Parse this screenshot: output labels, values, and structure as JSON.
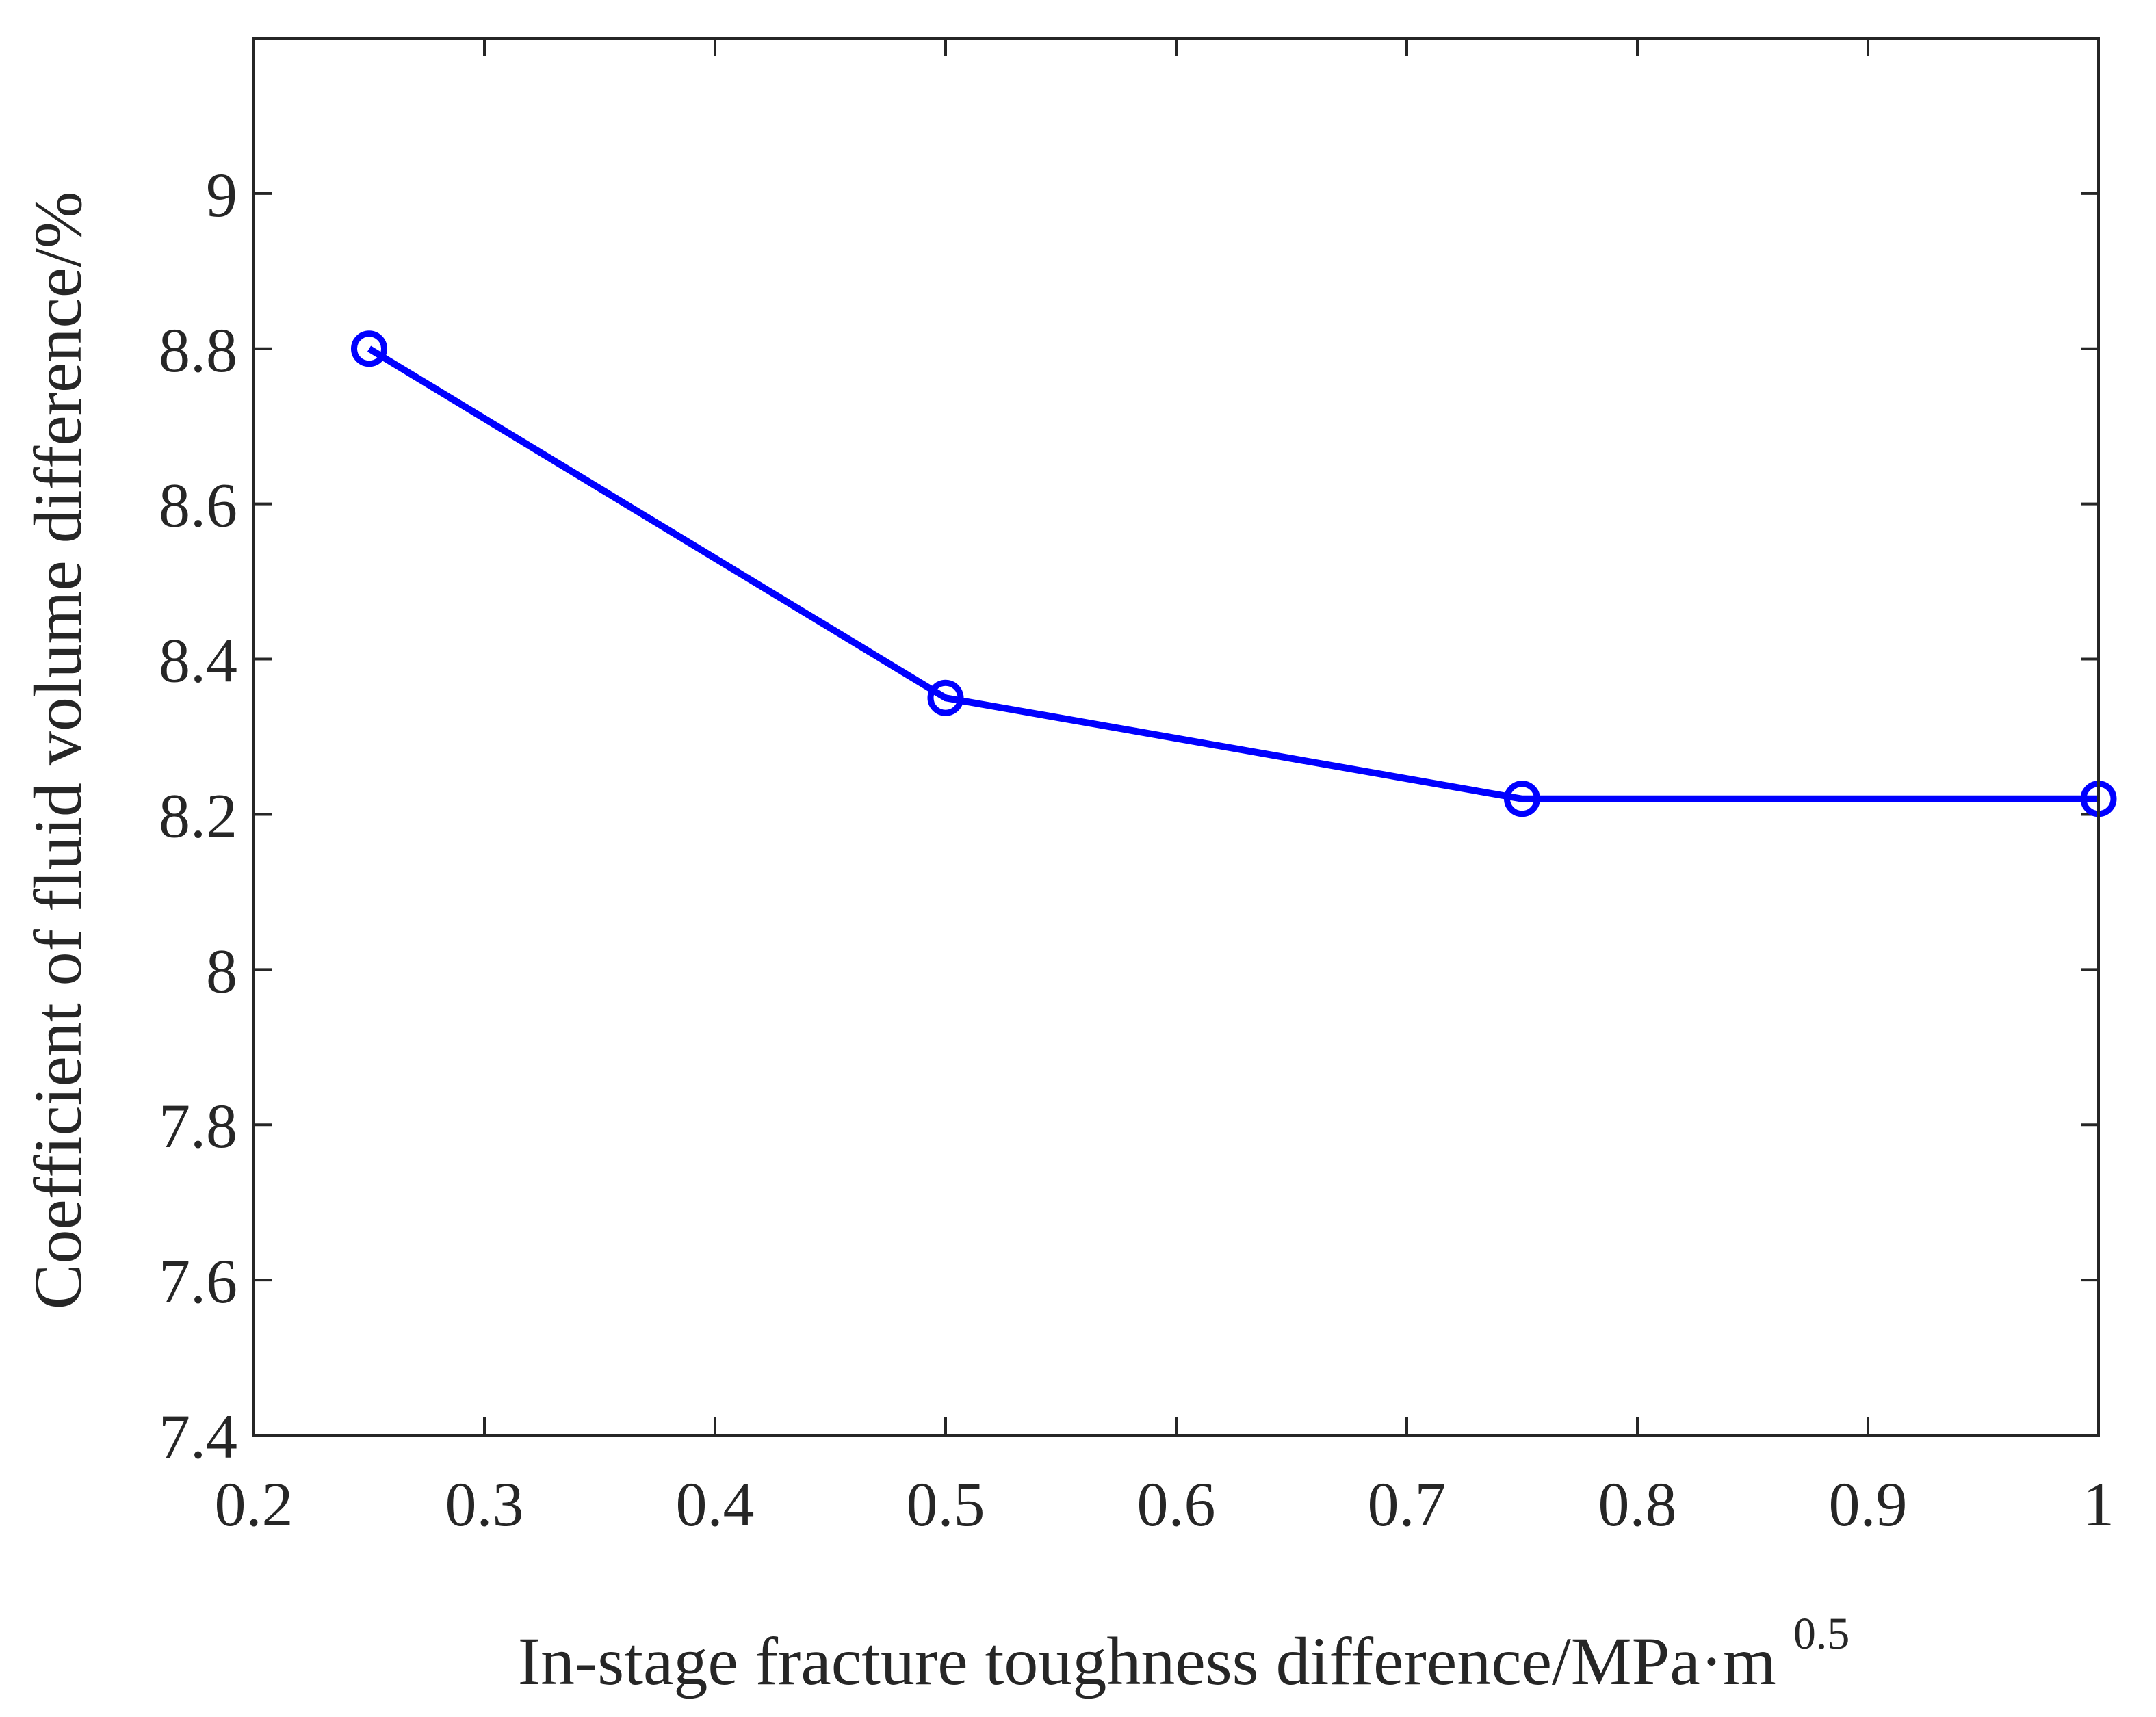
{
  "chart_data": {
    "type": "line",
    "title": "",
    "xlabel": "In-stage fracture toughness difference/MPa·m",
    "xlabel_superscript": "0.5",
    "ylabel": "Coefficient of fluid volume difference/%",
    "xlim": [
      0.2,
      1.0
    ],
    "ylim": [
      7.4,
      9.2
    ],
    "xticks": [
      0.2,
      0.3,
      0.4,
      0.5,
      0.6,
      0.7,
      0.8,
      0.9,
      1.0
    ],
    "xtick_labels": [
      "0.2",
      "0.3",
      "0.4",
      "0.5",
      "0.6",
      "0.7",
      "0.8",
      "0.9",
      "1"
    ],
    "yticks": [
      7.4,
      7.6,
      7.8,
      8.0,
      8.2,
      8.4,
      8.6,
      8.8,
      9.0
    ],
    "ytick_labels": [
      "7.4",
      "7.6",
      "7.8",
      "8",
      "8.2",
      "8.4",
      "8.6",
      "8.8",
      "9"
    ],
    "grid": false,
    "box": true,
    "series": [
      {
        "name": "Coefficient of fluid volume difference",
        "color": "#0000ff",
        "marker": "circle",
        "x": [
          0.25,
          0.5,
          0.75,
          1.0
        ],
        "y": [
          8.8,
          8.35,
          8.22,
          8.22
        ]
      }
    ]
  },
  "colors": {
    "axis": "#262626",
    "background": "#ffffff"
  }
}
